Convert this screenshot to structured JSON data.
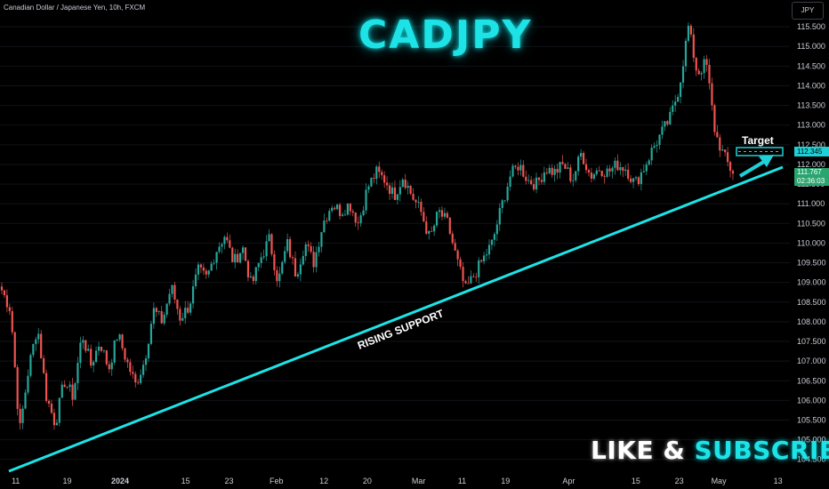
{
  "header": {
    "symbol_label": "Canadian Dollar / Japanese Yen, 10h, FXCM",
    "currency_button": "JPY"
  },
  "annotations": {
    "title": "CADJPY",
    "support_label": "RISING SUPPORT",
    "target_label": "Target",
    "cta_like": "LIKE & ",
    "cta_subscribe": "SUBSCRIBE"
  },
  "price_tags": {
    "target": "112.345",
    "last_price": "111.767",
    "countdown": "02:36:03"
  },
  "colors": {
    "up": "#26a69a",
    "down": "#ef5350",
    "support_line": "#1ee3e6",
    "target_box": "#1fd1d6"
  },
  "chart_data": {
    "type": "candlestick",
    "timeframe": "10h",
    "ylim": [
      104.2,
      116.0
    ],
    "y_ticks": [
      "104.500",
      "105.000",
      "105.500",
      "106.000",
      "106.500",
      "107.000",
      "107.500",
      "108.000",
      "108.500",
      "109.000",
      "109.500",
      "110.000",
      "110.500",
      "111.000",
      "111.500",
      "112.000",
      "112.500",
      "113.000",
      "113.500",
      "114.000",
      "114.500",
      "115.000",
      "115.500"
    ],
    "x_ticks": [
      {
        "label": "11",
        "bold": false,
        "pos": 0.02
      },
      {
        "label": "19",
        "bold": false,
        "pos": 0.085
      },
      {
        "label": "2024",
        "bold": true,
        "pos": 0.152
      },
      {
        "label": "15",
        "bold": false,
        "pos": 0.235
      },
      {
        "label": "23",
        "bold": false,
        "pos": 0.29
      },
      {
        "label": "Feb",
        "bold": false,
        "pos": 0.35
      },
      {
        "label": "12",
        "bold": false,
        "pos": 0.41
      },
      {
        "label": "20",
        "bold": false,
        "pos": 0.465
      },
      {
        "label": "Mar",
        "bold": false,
        "pos": 0.53
      },
      {
        "label": "11",
        "bold": false,
        "pos": 0.585
      },
      {
        "label": "19",
        "bold": false,
        "pos": 0.64
      },
      {
        "label": "Apr",
        "bold": false,
        "pos": 0.72
      },
      {
        "label": "15",
        "bold": false,
        "pos": 0.805
      },
      {
        "label": "23",
        "bold": false,
        "pos": 0.86
      },
      {
        "label": "May",
        "bold": false,
        "pos": 0.91
      },
      {
        "label": "13",
        "bold": false,
        "pos": 0.985
      }
    ],
    "close_path": [
      108.8,
      108.3,
      105.2,
      106.8,
      107.9,
      106.1,
      105.4,
      106.5,
      106.1,
      107.7,
      106.9,
      107.5,
      106.8,
      107.7,
      107.0,
      106.4,
      107.0,
      108.3,
      108.0,
      108.9,
      108.1,
      108.4,
      109.3,
      109.1,
      109.8,
      110.2,
      109.5,
      109.9,
      108.9,
      109.6,
      110.1,
      109.0,
      110.0,
      109.2,
      110.0,
      109.5,
      110.5,
      111.0,
      110.8,
      111.0,
      110.5,
      111.4,
      111.8,
      111.6,
      111.2,
      111.7,
      111.2,
      110.8,
      110.1,
      110.8,
      110.5,
      109.6,
      108.8,
      109.2,
      109.6,
      110.0,
      110.9,
      111.7,
      112.0,
      111.6,
      111.5,
      111.9,
      111.8,
      112.0,
      111.6,
      112.3,
      111.7,
      111.9,
      111.8,
      112.0,
      111.9,
      111.5,
      111.9,
      112.4,
      112.8,
      113.2,
      114.0,
      115.5,
      114.3,
      114.6,
      112.8,
      112.2,
      111.77
    ],
    "target_price": 112.345,
    "last_price": 111.767
  }
}
